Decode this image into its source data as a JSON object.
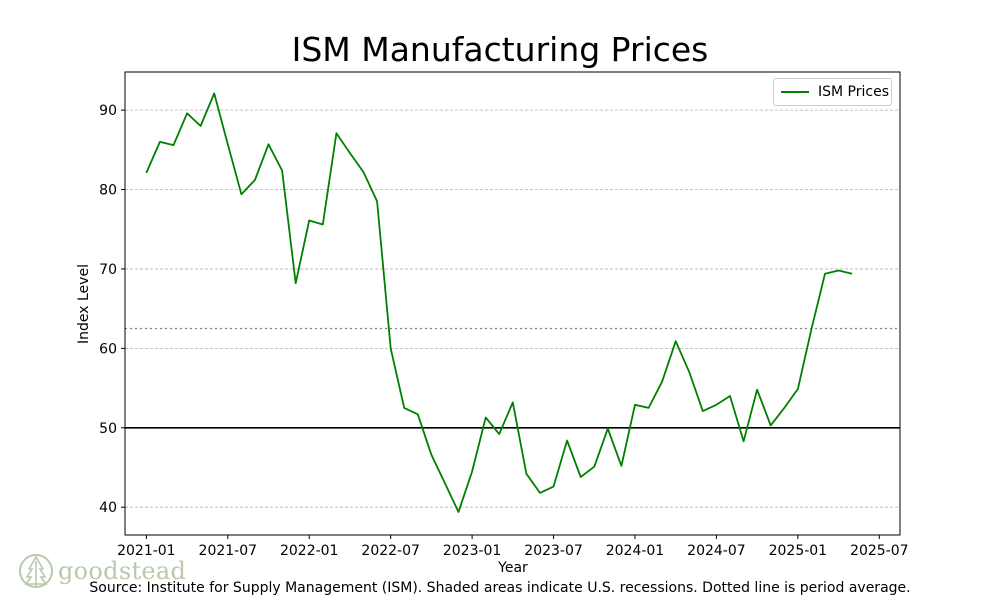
{
  "chart_data": {
    "type": "line",
    "title": "ISM Manufacturing Prices",
    "xlabel": "Year",
    "ylabel": "Index Level",
    "source": "Source:  Institute for Supply Management (ISM). Shaded areas indicate U.S. recessions. Dotted line is period average.",
    "x_ticks": [
      "2021-01",
      "2021-07",
      "2022-01",
      "2022-07",
      "2023-01",
      "2023-07",
      "2024-01",
      "2024-07",
      "2025-01",
      "2025-07"
    ],
    "y_ticks": [
      40,
      50,
      60,
      70,
      80,
      90
    ],
    "ylim": [
      36.5,
      94.8
    ],
    "xlim": [
      "2020-11-14",
      "2025-08-17"
    ],
    "grid": "horizontal dashed",
    "legend": "top-right",
    "reference_lines": [
      {
        "value": 50,
        "style": "solid",
        "color": "#000000"
      },
      {
        "value": 62.5,
        "style": "dotted",
        "color": "#808080",
        "label": "period average"
      }
    ],
    "series": [
      {
        "name": "ISM Prices",
        "color": "#008000",
        "x": [
          "2021-01",
          "2021-02",
          "2021-03",
          "2021-04",
          "2021-05",
          "2021-06",
          "2021-07",
          "2021-08",
          "2021-09",
          "2021-10",
          "2021-11",
          "2021-12",
          "2022-01",
          "2022-02",
          "2022-03",
          "2022-04",
          "2022-05",
          "2022-06",
          "2022-07",
          "2022-08",
          "2022-09",
          "2022-10",
          "2022-11",
          "2022-12",
          "2023-01",
          "2023-02",
          "2023-03",
          "2023-04",
          "2023-05",
          "2023-06",
          "2023-07",
          "2023-08",
          "2023-09",
          "2023-10",
          "2023-11",
          "2023-12",
          "2024-01",
          "2024-02",
          "2024-03",
          "2024-04",
          "2024-05",
          "2024-06",
          "2024-07",
          "2024-08",
          "2024-09",
          "2024-10",
          "2024-11",
          "2024-12",
          "2025-01",
          "2025-02",
          "2025-03",
          "2025-04",
          "2025-05"
        ],
        "values": [
          82.1,
          86.0,
          85.6,
          89.6,
          88.0,
          92.1,
          85.7,
          79.4,
          81.2,
          85.7,
          82.4,
          68.2,
          76.1,
          75.6,
          87.1,
          84.6,
          82.2,
          78.5,
          60.0,
          52.5,
          51.7,
          46.6,
          43.0,
          39.4,
          44.5,
          51.3,
          49.2,
          53.2,
          44.2,
          41.8,
          42.6,
          48.4,
          43.8,
          45.1,
          49.9,
          45.2,
          52.9,
          52.5,
          55.8,
          60.9,
          57.0,
          52.1,
          52.9,
          54.0,
          48.3,
          54.8,
          50.3,
          52.5,
          54.9,
          62.4,
          69.4,
          69.8,
          69.4
        ]
      }
    ]
  },
  "logo": {
    "text": "goodstead",
    "icon": "pine-tree-icon",
    "color": "#b9c9ad"
  }
}
